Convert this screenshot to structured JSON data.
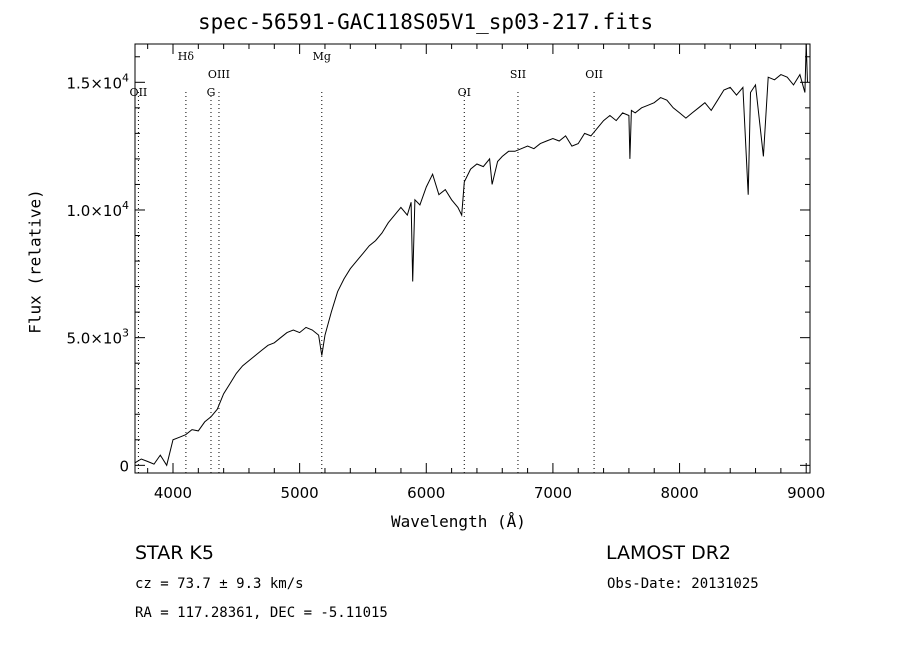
{
  "chart_data": {
    "type": "line",
    "title": "spec-56591-GAC118S05V1_sp03-217.fits",
    "xlabel": "Wavelength (Å)",
    "ylabel": "Flux (relative)",
    "xlim": [
      3700,
      9030
    ],
    "ylim": [
      -300,
      16500
    ],
    "x_ticks": [
      4000,
      5000,
      6000,
      7000,
      8000,
      9000
    ],
    "x_tick_labels": [
      "4000",
      "5000",
      "6000",
      "7000",
      "8000",
      "9000"
    ],
    "y_ticks": [
      0,
      5000,
      10000,
      15000
    ],
    "y_tick_labels": [
      {
        "mant": "0",
        "exp": ""
      },
      {
        "mant": "5.0×10",
        "exp": "3"
      },
      {
        "mant": "1.0×10",
        "exp": "4"
      },
      {
        "mant": "1.5×10",
        "exp": "4"
      }
    ],
    "grid": false,
    "line_color": "#000000",
    "series": [
      {
        "x": [
          3700,
          3750,
          3800,
          3850,
          3900,
          3950,
          4000,
          4050,
          4100,
          4150,
          4200,
          4250,
          4300,
          4350,
          4400,
          4450,
          4500,
          4550,
          4600,
          4650,
          4700,
          4750,
          4800,
          4850,
          4900,
          4950,
          5000,
          5050,
          5100,
          5150,
          5175,
          5200,
          5250,
          5300,
          5350,
          5400,
          5450,
          5500,
          5550,
          5600,
          5650,
          5700,
          5750,
          5800,
          5850,
          5880,
          5893,
          5910,
          5950,
          6000,
          6050,
          6100,
          6150,
          6200,
          6250,
          6280,
          6300,
          6350,
          6400,
          6450,
          6500,
          6520,
          6563,
          6600,
          6650,
          6700,
          6750,
          6800,
          6850,
          6900,
          6950,
          7000,
          7050,
          7100,
          7150,
          7200,
          7250,
          7300,
          7350,
          7400,
          7450,
          7500,
          7550,
          7600,
          7608,
          7620,
          7650,
          7700,
          7750,
          7800,
          7850,
          7900,
          7950,
          8000,
          8050,
          8100,
          8150,
          8200,
          8250,
          8300,
          8350,
          8400,
          8450,
          8500,
          8542,
          8560,
          8600,
          8662,
          8700,
          8750,
          8800,
          8850,
          8900,
          8950,
          8990,
          9000,
          9010
        ],
        "y": [
          100,
          250,
          150,
          50,
          400,
          0,
          1000,
          1100,
          1200,
          1400,
          1350,
          1700,
          1900,
          2200,
          2800,
          3200,
          3600,
          3900,
          4100,
          4300,
          4500,
          4700,
          4800,
          5000,
          5200,
          5300,
          5200,
          5400,
          5300,
          5100,
          4300,
          5100,
          6000,
          6800,
          7300,
          7700,
          8000,
          8300,
          8600,
          8800,
          9100,
          9500,
          9800,
          10100,
          9800,
          10300,
          7200,
          10400,
          10200,
          10900,
          11400,
          10600,
          10800,
          10400,
          10100,
          9800,
          11100,
          11600,
          11800,
          11700,
          12000,
          11000,
          11900,
          12100,
          12300,
          12300,
          12400,
          12500,
          12400,
          12600,
          12700,
          12800,
          12700,
          12900,
          12500,
          12600,
          13000,
          12900,
          13200,
          13500,
          13700,
          13500,
          13800,
          13700,
          12000,
          13900,
          13800,
          14000,
          14100,
          14200,
          14400,
          14300,
          14000,
          13800,
          13600,
          13800,
          14000,
          14200,
          13900,
          14300,
          14700,
          14800,
          14500,
          14800,
          10600,
          14600,
          14900,
          12100,
          15200,
          15100,
          15300,
          15200,
          14900,
          15300,
          14600,
          16600,
          15000
        ]
      }
    ],
    "annotations": [
      {
        "label": "OII",
        "x": 3727,
        "level": 2
      },
      {
        "label": "Hδ",
        "x": 4102,
        "level": 0
      },
      {
        "label": "G",
        "x": 4300,
        "level": 2
      },
      {
        "label": "OIII",
        "x": 4363,
        "level": 1
      },
      {
        "label": "Mg",
        "x": 5175,
        "level": 0
      },
      {
        "label": "OI",
        "x": 6300,
        "level": 2
      },
      {
        "label": "OII",
        "x": 7325,
        "level": 1
      },
      {
        "label": "SII",
        "x": 6724,
        "level": 1
      }
    ]
  },
  "info": {
    "class_line": "STAR    K5",
    "cz_line": "cz = 73.7 ± 9.3 km/s",
    "radec_line": "RA = 117.28361, DEC =  -5.11015",
    "survey": "LAMOST DR2",
    "obs_date": "Obs-Date: 20131025"
  }
}
